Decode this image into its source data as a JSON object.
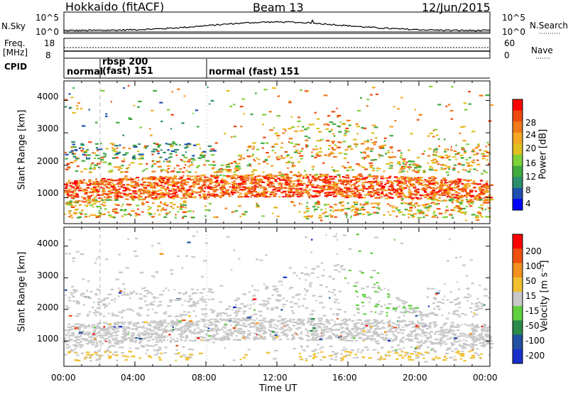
{
  "header": {
    "station": "Hokkaido (fitACF)",
    "beam": "Beam 13",
    "date": "12/Jun/2015"
  },
  "top_strip": {
    "nsky_label": "N.Sky",
    "nsearch_label": "N.Search",
    "ticks_left": [
      "10^5",
      "10^0"
    ],
    "ticks_right": [
      "10^5",
      "10^0"
    ]
  },
  "freq_strip": {
    "freq_label": "Freq.",
    "unit_label": "[MHz]",
    "nave_label": "Nave",
    "ticks_left": [
      "18",
      "8"
    ],
    "ticks_right": [
      "60",
      "0"
    ]
  },
  "cpid": {
    "label": "CPID",
    "segments": [
      "normal",
      "rbsp 200",
      "(fast) 151",
      "normal (fast) 151"
    ]
  },
  "chart_data": [
    {
      "type": "heatmap",
      "panel": "power",
      "ylabel": "Slant Range [km]",
      "yticks": [
        "1000",
        "2000",
        "3000",
        "4000"
      ],
      "colorbar_label": "Power [dB]",
      "colorbar_ticks": [
        "4",
        "8",
        "12",
        "16",
        "20",
        "24",
        "28"
      ],
      "colorbar_colors": [
        "#0000ff",
        "#1f4fb0",
        "#2a8f6a",
        "#3faa3f",
        "#7fd23a",
        "#e0c020",
        "#f5a623",
        "#f07a1a",
        "#ee4a10",
        "#ff0000"
      ],
      "ylim": [
        200,
        4600
      ]
    },
    {
      "type": "heatmap",
      "panel": "velocity",
      "ylabel": "Slant Range [km]",
      "yticks": [
        "1000",
        "2000",
        "3000",
        "4000"
      ],
      "colorbar_label": "Velocity [m s⁻¹]",
      "colorbar_ticks": [
        "200",
        "100",
        "50",
        "15",
        "-15",
        "-50",
        "-100",
        "-200"
      ],
      "colorbar_colors": [
        "#1830c8",
        "#2050a0",
        "#2a8a4a",
        "#60d040",
        "#c8c8c8",
        "#f0c030",
        "#f09020",
        "#f05010",
        "#ff0000"
      ],
      "ylim": [
        200,
        4600
      ]
    }
  ],
  "xaxis": {
    "ticks": [
      "00:00",
      "04:00",
      "08:00",
      "12:00",
      "16:00",
      "20:00",
      "00:00"
    ],
    "label": "Time UT"
  }
}
